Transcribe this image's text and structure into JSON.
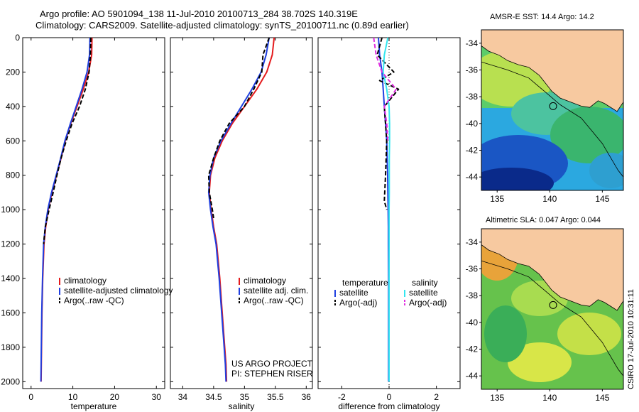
{
  "header": {
    "line1": "Argo profile: AO 5901094_138 11-Jul-2010 20100713_284 38.702S 140.319E",
    "line2": "Climatology: CARS2009. Satellite-adjusted climatology: synTS_20100711.nc (0.89d earlier)"
  },
  "credit": "CSIRO 17-Jul-2010 10:31:11",
  "colors": {
    "climatology": "#e41a1c",
    "satellite": "#1f3fe0",
    "argo": "#000000",
    "salinity_satellite": "#33e6f0",
    "salinity_argo": "#e030e0",
    "land": "#f7c9a0"
  },
  "chart_data": [
    {
      "type": "line",
      "id": "temperature",
      "xlabel": "temperature",
      "xticks": [
        0,
        10,
        20,
        30
      ],
      "xlim": [
        -2,
        32
      ],
      "yticks": [
        0,
        200,
        400,
        600,
        800,
        1000,
        1200,
        1400,
        1600,
        1800,
        2000
      ],
      "ylim": [
        0,
        2040
      ],
      "y_reversed": true,
      "legend": {
        "location": "lower-right",
        "entries": [
          "climatology",
          "satellite-adjusted climatology",
          "Argo(..raw -QC)"
        ]
      },
      "series": [
        {
          "name": "climatology",
          "color": "#e41a1c",
          "dash": "",
          "x": [
            14.6,
            14.5,
            13.8,
            12.5,
            11,
            9.5,
            8.2,
            7.2,
            6.1,
            5.0,
            4.1,
            3.5,
            3.1,
            2.8,
            2.6,
            2.5,
            2.45,
            2.4
          ],
          "y": [
            0,
            100,
            200,
            300,
            400,
            500,
            600,
            700,
            800,
            900,
            1000,
            1100,
            1200,
            1400,
            1600,
            1800,
            1900,
            2000
          ]
        },
        {
          "name": "satellite-adjusted climatology",
          "color": "#1f3fe0",
          "dash": "",
          "x": [
            14.1,
            14.0,
            13.4,
            12.2,
            10.8,
            9.4,
            8.1,
            7.1,
            6.0,
            4.9,
            4.0,
            3.4,
            3.0,
            2.75,
            2.55,
            2.45,
            2.4,
            2.35
          ],
          "y": [
            0,
            100,
            200,
            300,
            400,
            500,
            600,
            700,
            800,
            900,
            1000,
            1100,
            1200,
            1400,
            1600,
            1800,
            1900,
            2000
          ]
        },
        {
          "name": "Argo(..raw -QC)",
          "color": "#000000",
          "dash": "6,3",
          "x": [
            14.3,
            14.2,
            13.9,
            13.0,
            11.6,
            9.8,
            8.4,
            7.2,
            6.2,
            5.3,
            4.3,
            3.4,
            3.0
          ],
          "y": [
            0,
            100,
            200,
            300,
            400,
            500,
            600,
            700,
            800,
            900,
            1000,
            1100,
            1200
          ]
        }
      ]
    },
    {
      "type": "line",
      "id": "salinity",
      "xlabel": "salinity",
      "xticks": [
        34,
        34.5,
        35,
        35.5,
        36
      ],
      "xlim": [
        33.8,
        36.1
      ],
      "yticks": [
        0,
        200,
        400,
        600,
        800,
        1000,
        1200,
        1400,
        1600,
        1800,
        2000
      ],
      "ylim": [
        0,
        2040
      ],
      "y_reversed": true,
      "annotations": [
        "US ARGO PROJECT",
        "PI: STEPHEN RISER"
      ],
      "legend": {
        "location": "lower-right",
        "entries": [
          "climatology",
          "satellite adj. clim.",
          "Argo(..raw -QC)"
        ]
      },
      "series": [
        {
          "name": "climatology",
          "color": "#e41a1c",
          "dash": "",
          "x": [
            35.48,
            35.45,
            35.36,
            35.2,
            35.0,
            34.8,
            34.64,
            34.52,
            34.45,
            34.43,
            34.46,
            34.5,
            34.55,
            34.6,
            34.64,
            34.68,
            34.7,
            34.71
          ],
          "y": [
            0,
            100,
            200,
            300,
            400,
            500,
            600,
            700,
            800,
            900,
            1000,
            1100,
            1200,
            1400,
            1600,
            1800,
            1900,
            2000
          ]
        },
        {
          "name": "satellite adj. clim.",
          "color": "#1f3fe0",
          "dash": "",
          "x": [
            35.4,
            35.35,
            35.27,
            35.12,
            34.95,
            34.78,
            34.62,
            34.5,
            34.44,
            34.42,
            34.45,
            34.49,
            34.54,
            34.59,
            34.63,
            34.67,
            34.69,
            34.7
          ],
          "y": [
            0,
            100,
            200,
            300,
            400,
            500,
            600,
            700,
            800,
            900,
            1000,
            1100,
            1200,
            1400,
            1600,
            1800,
            1900,
            2000
          ]
        },
        {
          "name": "Argo(..raw -QC)",
          "color": "#000000",
          "dash": "6,3",
          "x": [
            35.4,
            35.3,
            35.28,
            35.15,
            35.0,
            34.75,
            34.6,
            34.5,
            34.42,
            34.43,
            34.48,
            34.5
          ],
          "y": [
            0,
            100,
            200,
            300,
            400,
            500,
            600,
            700,
            800,
            900,
            1000,
            1050
          ]
        }
      ]
    },
    {
      "type": "line",
      "id": "difference",
      "xlabel": "difference from climatology",
      "xticks": [
        -2,
        0,
        2
      ],
      "xlim": [
        -3,
        3
      ],
      "yticks": [
        0,
        200,
        400,
        600,
        800,
        1000,
        1200,
        1400,
        1600,
        1800,
        2000
      ],
      "ylim": [
        0,
        2040
      ],
      "y_reversed": true,
      "legend": {
        "location": "lower-center",
        "groups": [
          {
            "heading": "temperature",
            "entries": [
              "satellite",
              "Argo(-adj)"
            ]
          },
          {
            "heading": "salinity",
            "entries": [
              "satellite",
              "Argo(-adj)"
            ]
          }
        ]
      },
      "series": [
        {
          "name": "temperature satellite",
          "color": "#1f3fe0",
          "dash": "",
          "x": [
            -0.45,
            -0.4,
            -0.3,
            -0.25,
            -0.2,
            -0.15,
            -0.1,
            -0.08,
            -0.06,
            -0.05,
            -0.04,
            -0.03,
            -0.03,
            -0.02,
            -0.02,
            -0.02,
            -0.02,
            -0.02
          ],
          "y": [
            0,
            100,
            200,
            300,
            400,
            500,
            600,
            700,
            800,
            900,
            1000,
            1100,
            1200,
            1400,
            1600,
            1800,
            1900,
            2000
          ]
        },
        {
          "name": "temperature Argo(-adj)",
          "color": "#000000",
          "dash": "6,3",
          "x": [
            -0.3,
            -0.5,
            0.2,
            -0.4,
            0.4,
            -0.2,
            -0.15,
            -0.1,
            -0.15,
            -0.2,
            -0.1
          ],
          "y": [
            0,
            100,
            200,
            250,
            300,
            400,
            500,
            600,
            800,
            950,
            1000
          ]
        },
        {
          "name": "salinity satellite",
          "color": "#33e6f0",
          "dash": "",
          "x": [
            -0.05,
            -0.2,
            -0.25,
            -0.1,
            0.0,
            0.02,
            0.02,
            0.01,
            0.01,
            0.01,
            0.0,
            0.0,
            0.0,
            0.0,
            0.0,
            0.0,
            0.0,
            0.0
          ],
          "y": [
            0,
            100,
            200,
            300,
            400,
            500,
            600,
            700,
            800,
            900,
            1000,
            1100,
            1200,
            1400,
            1600,
            1800,
            1900,
            2000
          ]
        },
        {
          "name": "salinity Argo(-adj)",
          "color": "#e030e0",
          "dash": "6,3",
          "x": [
            -0.65,
            -0.55,
            -0.3,
            0.3,
            -0.2,
            -0.1,
            -0.05
          ],
          "y": [
            0,
            100,
            200,
            300,
            400,
            500,
            600
          ]
        }
      ]
    }
  ],
  "maps": [
    {
      "id": "sst",
      "title": "AMSR-E SST: 14.4 Argo: 14.2",
      "xticks": [
        135,
        140,
        145
      ],
      "yticks": [
        -34,
        -36,
        -38,
        -40,
        -42,
        -44
      ],
      "lon_range": [
        133.5,
        147
      ],
      "lat_range": [
        -45,
        -33
      ],
      "profile_marker": {
        "lon": 140.319,
        "lat": -38.702
      }
    },
    {
      "id": "sla",
      "title": "Altimetric SLA: 0.047 Argo: 0.044",
      "xticks": [
        135,
        140,
        145
      ],
      "yticks": [
        -34,
        -36,
        -38,
        -40,
        -42,
        -44
      ],
      "lon_range": [
        133.5,
        147
      ],
      "lat_range": [
        -45,
        -33
      ],
      "profile_marker": {
        "lon": 140.319,
        "lat": -38.702
      }
    }
  ]
}
